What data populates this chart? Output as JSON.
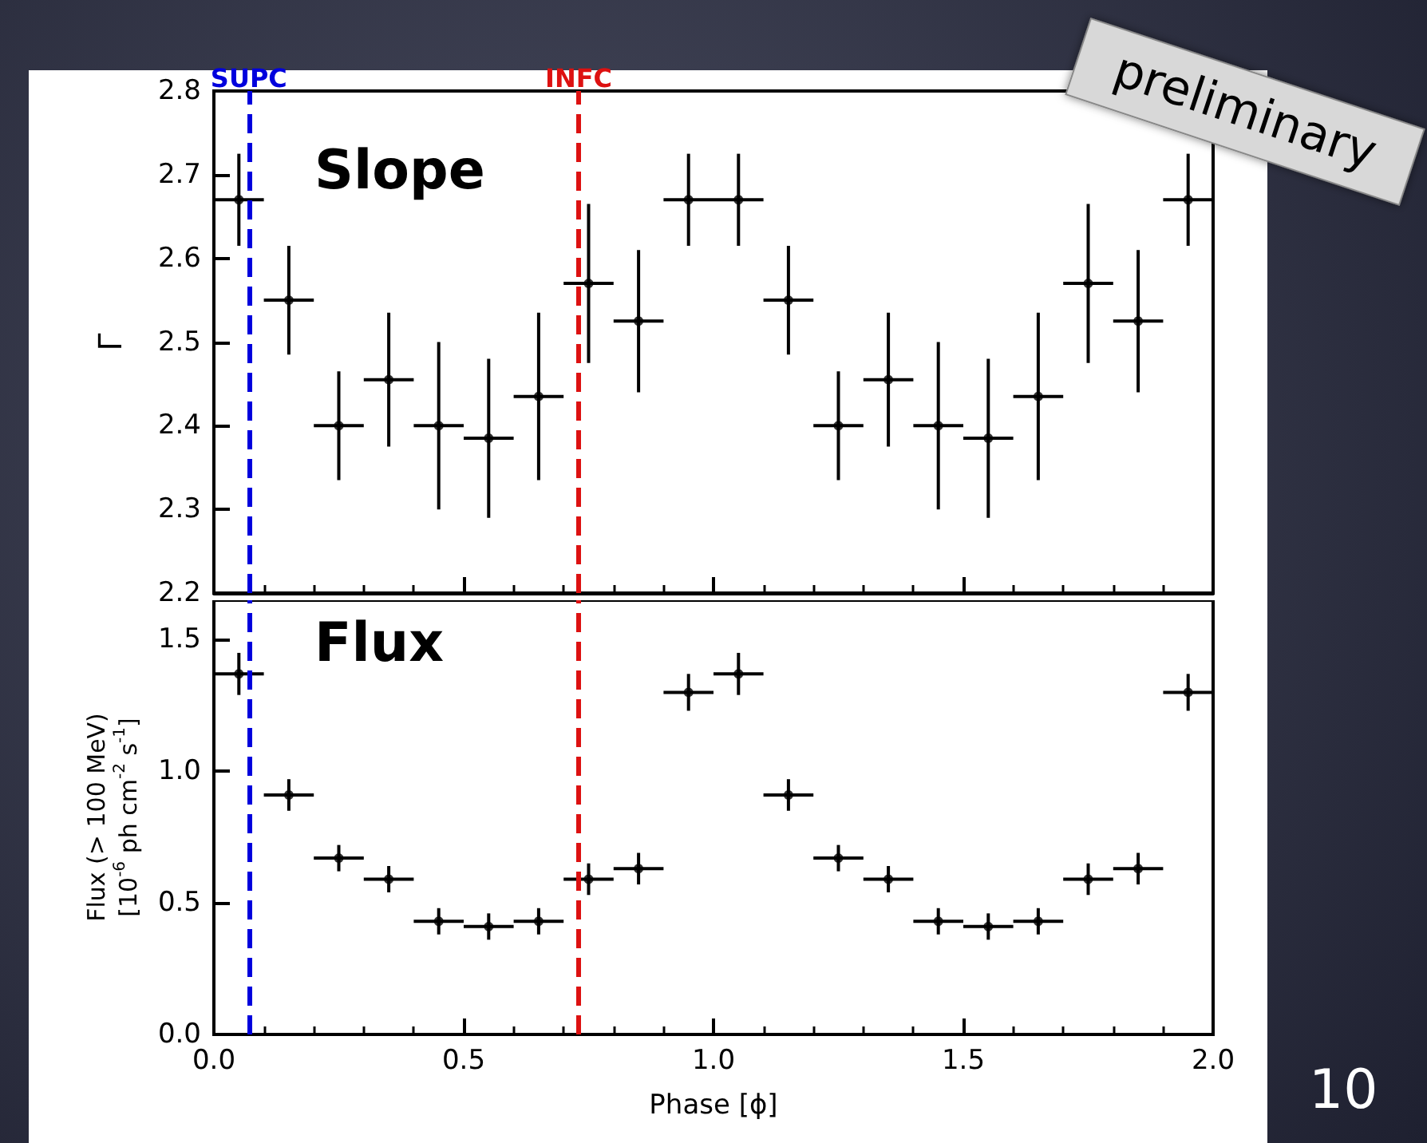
{
  "chart_data": [
    {
      "type": "scatter",
      "ylabel": "Γ",
      "annotations": [
        "Slope",
        "preliminary"
      ],
      "x": [
        0.05,
        0.15,
        0.25,
        0.35,
        0.45,
        0.55,
        0.65,
        0.75,
        0.85,
        0.95,
        1.05,
        1.15,
        1.25,
        1.35,
        1.45,
        1.55,
        1.65,
        1.75,
        1.85,
        1.95
      ],
      "series": [
        {
          "color": "#000000",
          "values": [
            2.67,
            2.55,
            2.4,
            2.455,
            2.4,
            2.385,
            2.435,
            2.57,
            2.525,
            2.67,
            2.67,
            2.55,
            2.4,
            2.455,
            2.4,
            2.385,
            2.435,
            2.57,
            2.525,
            2.67
          ],
          "errors": [
            0.055,
            0.065,
            0.065,
            0.08,
            0.1,
            0.095,
            0.1,
            0.095,
            0.085,
            0.055,
            0.055,
            0.065,
            0.065,
            0.08,
            0.1,
            0.095,
            0.1,
            0.095,
            0.085,
            0.055
          ],
          "xerrors": [
            0.05,
            0.05,
            0.05,
            0.05,
            0.05,
            0.05,
            0.05,
            0.05,
            0.05,
            0.05,
            0.05,
            0.05,
            0.05,
            0.05,
            0.05,
            0.05,
            0.05,
            0.05,
            0.05,
            0.05
          ]
        }
      ],
      "xlim": [
        0,
        2
      ],
      "ylim": [
        2.2,
        2.8
      ],
      "yticks": [
        {
          "value": 2.2,
          "label": "2.2"
        },
        {
          "value": 2.3,
          "label": "2.3"
        },
        {
          "value": 2.4,
          "label": "2.4"
        },
        {
          "value": 2.5,
          "label": "2.5"
        },
        {
          "value": 2.6,
          "label": "2.6"
        },
        {
          "value": 2.7,
          "label": "2.7"
        },
        {
          "value": 2.8,
          "label": "2.8"
        }
      ],
      "tick_labels": "y",
      "marker": "circle",
      "grid": false,
      "ref_lines": [
        {
          "axis": "x",
          "value": 0.07,
          "label": "SUPC",
          "color": "#0000dd",
          "line_style": "dashed"
        },
        {
          "axis": "x",
          "value": 0.73,
          "label": "INFC",
          "color": "#dd1111",
          "line_style": "dashed"
        }
      ]
    },
    {
      "type": "scatter",
      "xlabel": "Phase [ϕ]",
      "ylabel": "Flux (> 100 MeV)\n[10$^{-6}$ ph cm$^{-2}$ s$^{-1}$]",
      "annotations": [
        "Flux",
        "10"
      ],
      "x": [
        0.05,
        0.15,
        0.25,
        0.35,
        0.45,
        0.55,
        0.65,
        0.75,
        0.85,
        0.95,
        1.05,
        1.15,
        1.25,
        1.35,
        1.45,
        1.55,
        1.65,
        1.75,
        1.85,
        1.95
      ],
      "series": [
        {
          "color": "#000000",
          "values": [
            1.37,
            0.91,
            0.67,
            0.59,
            0.43,
            0.41,
            0.43,
            0.59,
            0.63,
            1.3,
            1.37,
            0.91,
            0.67,
            0.59,
            0.43,
            0.41,
            0.43,
            0.59,
            0.63,
            1.3
          ],
          "errors": [
            0.08,
            0.06,
            0.05,
            0.05,
            0.05,
            0.05,
            0.05,
            0.06,
            0.06,
            0.07,
            0.08,
            0.06,
            0.05,
            0.05,
            0.05,
            0.05,
            0.05,
            0.06,
            0.06,
            0.07
          ],
          "xerrors": [
            0.05,
            0.05,
            0.05,
            0.05,
            0.05,
            0.05,
            0.05,
            0.05,
            0.05,
            0.05,
            0.05,
            0.05,
            0.05,
            0.05,
            0.05,
            0.05,
            0.05,
            0.05,
            0.05,
            0.05
          ]
        }
      ],
      "xlim": [
        0,
        2
      ],
      "xticks": [
        {
          "value": 0,
          "label": "0.0"
        },
        {
          "value": 0.5,
          "label": "0.5"
        },
        {
          "value": 1,
          "label": "1.0"
        },
        {
          "value": 1.5,
          "label": "1.5"
        },
        {
          "value": 2,
          "label": "2.0"
        }
      ],
      "ylim": [
        0,
        1.65
      ],
      "yticks": [
        {
          "value": 0,
          "label": "0.0"
        },
        {
          "value": 0.5,
          "label": "0.5"
        },
        {
          "value": 1,
          "label": "1.0"
        },
        {
          "value": 1.5,
          "label": "1.5"
        }
      ],
      "marker": "circle",
      "grid": false,
      "ref_lines": [
        {
          "axis": "x",
          "value": 0.07,
          "label": null,
          "color": "#0000dd",
          "line_style": "dashed"
        },
        {
          "axis": "x",
          "value": 0.73,
          "label": null,
          "color": "#dd1111",
          "line_style": "dashed"
        }
      ]
    }
  ]
}
